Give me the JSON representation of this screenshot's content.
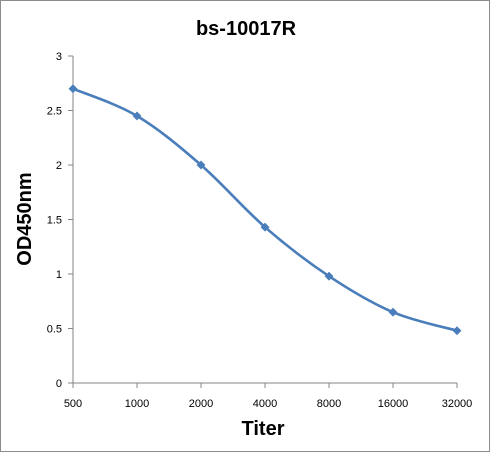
{
  "chart_data": {
    "type": "line",
    "title": "bs-10017R",
    "xlabel": "Titer",
    "ylabel": "OD450nm",
    "categories": [
      "500",
      "1000",
      "2000",
      "4000",
      "8000",
      "16000",
      "32000"
    ],
    "series": [
      {
        "values": [
          2.7,
          2.45,
          2.0,
          1.43,
          0.98,
          0.65,
          0.48
        ],
        "color": "#4a7ebb",
        "marker": "diamond"
      }
    ],
    "ylim": [
      0,
      3
    ],
    "yticks": [
      "0",
      "0.5",
      "1",
      "1.5",
      "2",
      "2.5",
      "3"
    ],
    "smooth": true,
    "grid": false,
    "legend": "none"
  }
}
